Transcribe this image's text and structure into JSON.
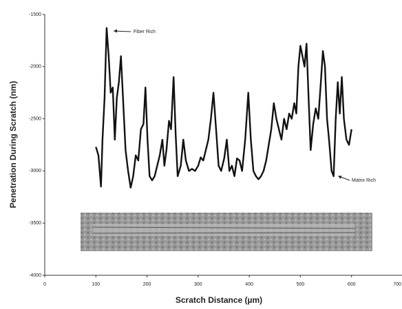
{
  "chart_data": {
    "type": "line",
    "xlabel": "Scratch Distance (µm)",
    "ylabel": "Penetration During Scratch (nm)",
    "annotations": [
      "Fiber Rich",
      "Matrix Rich"
    ],
    "color": "#111111",
    "x": [
      100,
      105,
      110,
      113,
      117,
      121,
      125,
      129,
      133,
      137,
      141,
      145,
      149,
      153,
      158,
      163,
      168,
      173,
      178,
      183,
      188,
      193,
      197,
      201,
      205,
      210,
      215,
      220,
      225,
      230,
      234,
      238,
      243,
      247,
      252,
      256,
      260,
      266,
      271,
      276,
      282,
      288,
      294,
      300,
      305,
      310,
      315,
      320,
      325,
      330,
      335,
      340,
      345,
      351,
      356,
      361,
      366,
      371,
      376,
      381,
      386,
      392,
      398,
      403,
      408,
      413,
      418,
      423,
      428,
      433,
      438,
      443,
      448,
      453,
      458,
      463,
      468,
      473,
      478,
      483,
      488,
      492,
      496,
      500,
      504,
      508,
      512,
      516,
      520,
      525,
      530,
      535,
      540,
      544,
      548,
      552,
      556,
      561,
      565,
      569,
      573,
      577,
      581,
      585,
      590,
      595,
      600
    ],
    "values": [
      -2770,
      -2850,
      -3150,
      -2700,
      -2300,
      -1630,
      -1900,
      -2250,
      -2200,
      -2700,
      -2300,
      -2150,
      -1900,
      -2300,
      -2800,
      -3000,
      -3160,
      -3050,
      -2850,
      -2900,
      -2600,
      -2550,
      -2200,
      -2700,
      -3050,
      -3090,
      -3050,
      -2950,
      -2850,
      -2700,
      -2950,
      -2800,
      -2520,
      -2600,
      -2100,
      -2650,
      -3050,
      -2950,
      -2700,
      -2900,
      -3000,
      -2980,
      -3000,
      -2950,
      -2870,
      -2900,
      -2800,
      -2700,
      -2500,
      -2250,
      -2600,
      -2950,
      -3000,
      -2880,
      -2700,
      -3000,
      -2950,
      -3050,
      -2880,
      -2900,
      -3000,
      -2700,
      -2250,
      -2700,
      -3000,
      -3050,
      -3080,
      -3050,
      -3000,
      -2900,
      -2750,
      -2600,
      -2350,
      -2500,
      -2600,
      -2700,
      -2500,
      -2600,
      -2450,
      -2500,
      -2350,
      -2450,
      -2000,
      -1800,
      -1900,
      -2000,
      -1780,
      -2300,
      -2800,
      -2550,
      -2400,
      -2500,
      -2150,
      -1850,
      -2000,
      -2500,
      -2700,
      -3000,
      -3050,
      -2500,
      -2150,
      -2450,
      -2100,
      -2500,
      -2700,
      -2750,
      -2600
    ],
    "xlim": [
      0,
      700
    ],
    "xticks": [
      0,
      100,
      200,
      300,
      400,
      500,
      600,
      700
    ],
    "ylim": [
      -4000,
      -1500
    ],
    "yticks": [
      -4000,
      -3500,
      -3000,
      -2500,
      -2000,
      -1500
    ]
  }
}
